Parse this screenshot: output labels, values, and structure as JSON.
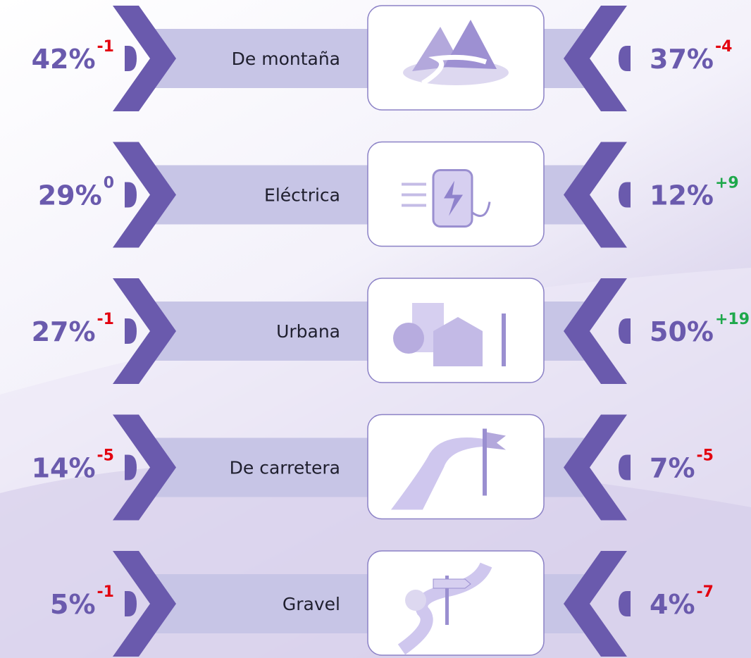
{
  "rows": [
    {
      "label": "De montaña",
      "left_value": "42%",
      "left_change": "-1",
      "left_change_color": "#e3000f",
      "right_value": "37%",
      "right_change": "-4",
      "right_change_color": "#e3000f"
    },
    {
      "label": "Eléctrica",
      "left_value": "29%",
      "left_change": "0",
      "left_change_color": "#6a5aad",
      "right_value": "12%",
      "right_change": "+9",
      "right_change_color": "#1ea84b"
    },
    {
      "label": "Urbana",
      "left_value": "27%",
      "left_change": "-1",
      "left_change_color": "#e3000f",
      "right_value": "50%",
      "right_change": "+19",
      "right_change_color": "#1ea84b"
    },
    {
      "label": "De carretera",
      "left_value": "14%",
      "left_change": "-5",
      "left_change_color": "#e3000f",
      "right_value": "7%",
      "right_change": "-5",
      "right_change_color": "#e3000f"
    },
    {
      "label": "Gravel",
      "left_value": "5%",
      "left_change": "-1",
      "left_change_color": "#e3000f",
      "right_value": "4%",
      "right_change": "-7",
      "right_change_color": "#e3000f"
    }
  ]
}
